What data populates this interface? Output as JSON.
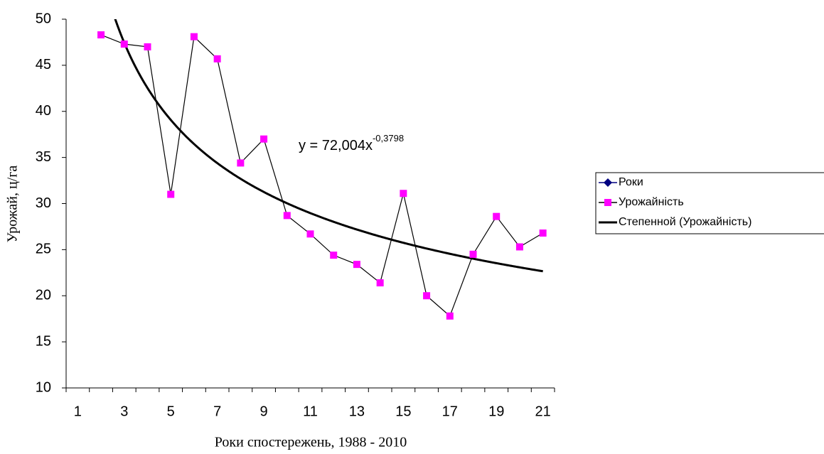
{
  "chart_data": {
    "type": "line",
    "categories": [
      1,
      null,
      3,
      null,
      5,
      null,
      7,
      null,
      9,
      null,
      11,
      null,
      13,
      null,
      15,
      null,
      17,
      null,
      19,
      null,
      21
    ],
    "x_label": "Роки спостережень, 1988 - 2010",
    "y_label": "Урожай, ц/га",
    "ylim": [
      10,
      50
    ],
    "yticks": [
      10,
      15,
      20,
      25,
      30,
      35,
      40,
      45,
      50
    ],
    "series": [
      {
        "name": "Роки",
        "color": "#000080",
        "marker": "diamond"
      },
      {
        "name": "Урожайність",
        "color": "#ff00ff",
        "line_color": "#000000",
        "marker": "square",
        "values": [
          null,
          48.3,
          47.3,
          47.0,
          31.0,
          48.1,
          45.7,
          34.4,
          37.0,
          28.7,
          26.7,
          24.4,
          23.4,
          21.4,
          31.1,
          20.0,
          17.8,
          24.5,
          28.6,
          25.3,
          26.8
        ]
      }
    ],
    "trendline": {
      "name": "Степенной (Урожайність)",
      "color": "#000000",
      "kind": "power",
      "a": 72.004,
      "b": -0.3798,
      "label": "y = 72,004x",
      "label_exponent": "-0,3798"
    },
    "legend": "right"
  }
}
